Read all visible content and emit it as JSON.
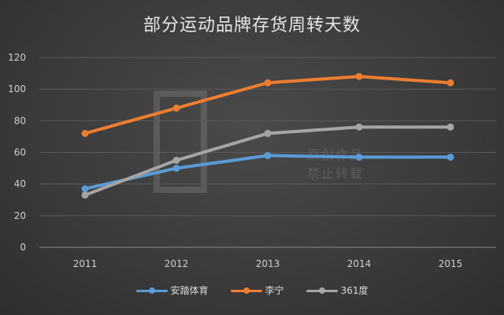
{
  "watermark": {
    "line1": "原创作品",
    "line2": "禁止转载"
  },
  "chart_data": {
    "type": "line",
    "title": "部分运动品牌存货周转天数",
    "categories": [
      "2011",
      "2012",
      "2013",
      "2014",
      "2015"
    ],
    "ylim": [
      0,
      120
    ],
    "yticks": [
      0,
      20,
      40,
      60,
      80,
      100,
      120
    ],
    "grid": true,
    "legend_position": "bottom",
    "series": [
      {
        "name": "安踏体育",
        "color": "#5b9bd5",
        "values": [
          37,
          50,
          58,
          57,
          57
        ]
      },
      {
        "name": "李宁",
        "color": "#ed7d31",
        "values": [
          72,
          88,
          104,
          108,
          104
        ]
      },
      {
        "name": "361度",
        "color": "#a5a5a5",
        "values": [
          33,
          55,
          72,
          76,
          76
        ]
      }
    ]
  }
}
